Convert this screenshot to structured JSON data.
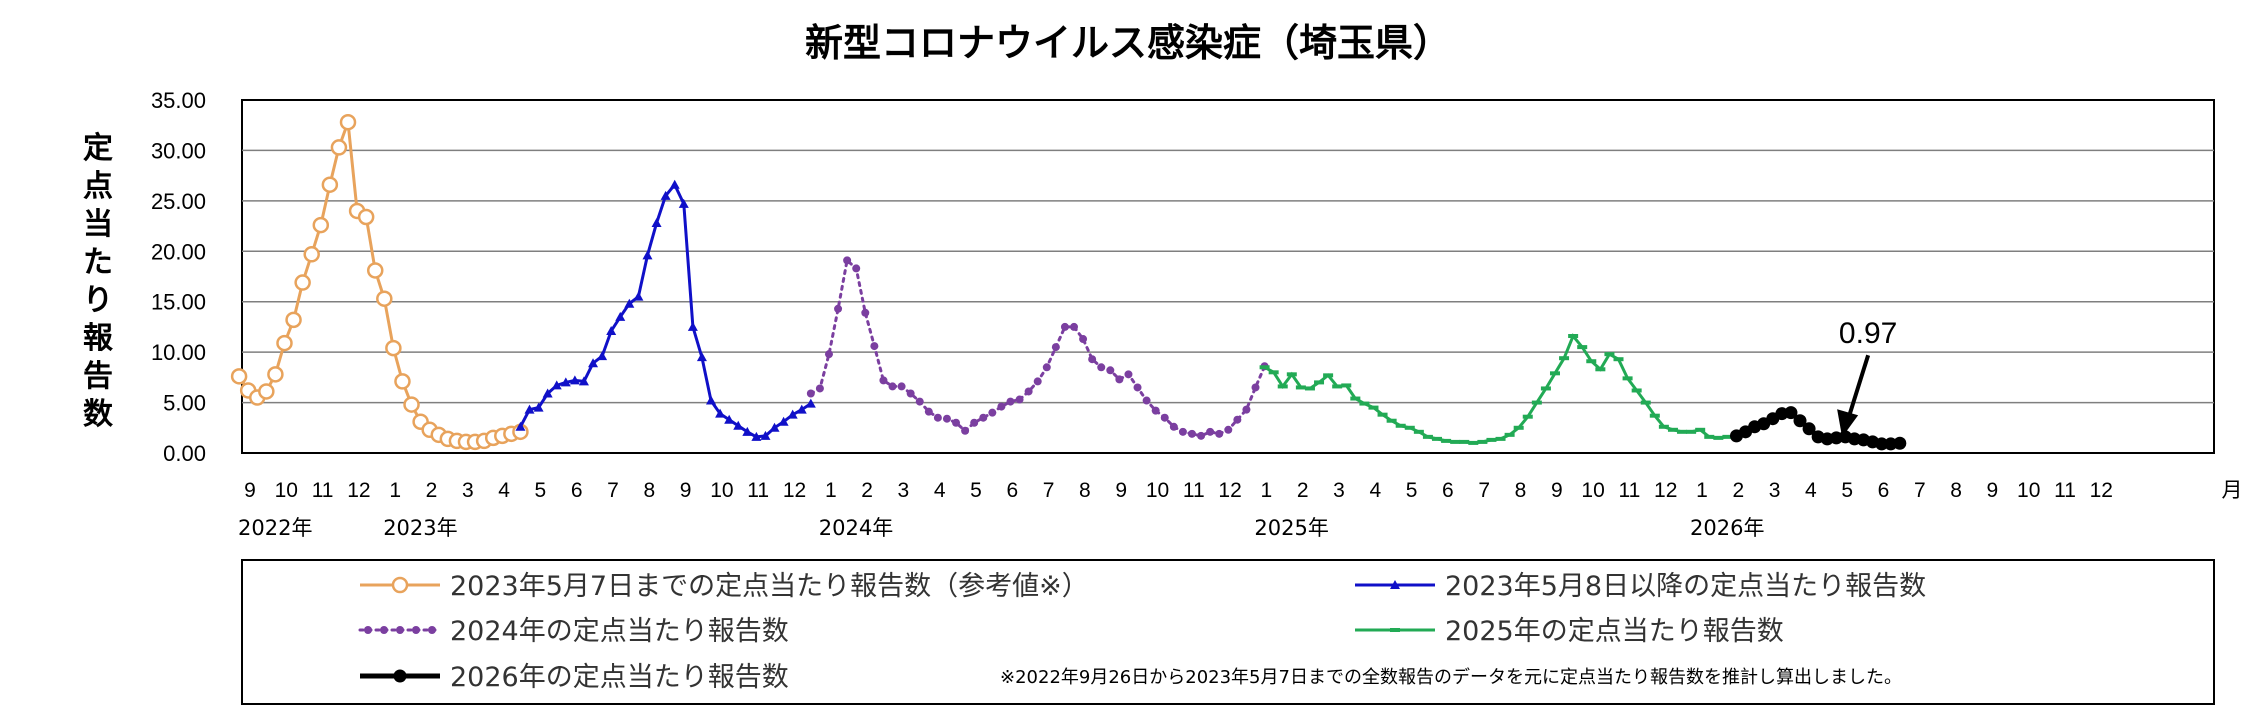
{
  "chart_data": {
    "type": "line",
    "title": "新型コロナウイルス感染症（埼玉県）",
    "ylabel": "定点当たり報告数",
    "ylim": [
      0,
      35
    ],
    "yticks": [
      "0.00",
      "5.00",
      "10.00",
      "15.00",
      "20.00",
      "25.00",
      "30.00",
      "35.00"
    ],
    "grid": true,
    "month_labels": [
      "9",
      "10",
      "11",
      "12",
      "1",
      "2",
      "3",
      "4",
      "5",
      "6",
      "7",
      "8",
      "9",
      "10",
      "11",
      "12",
      "1",
      "2",
      "3",
      "4",
      "5",
      "6",
      "7",
      "8",
      "9",
      "10",
      "11",
      "12",
      "1",
      "2",
      "3",
      "4",
      "5",
      "6",
      "7",
      "8",
      "9",
      "10",
      "11",
      "12",
      "1",
      "2",
      "3",
      "4",
      "5",
      "6",
      "7",
      "8",
      "9",
      "10",
      "11",
      "12"
    ],
    "month_unit": "月",
    "year_labels": [
      {
        "month_index": 0,
        "text": "2022年"
      },
      {
        "month_index": 4,
        "text": "2023年"
      },
      {
        "month_index": 16,
        "text": "2024年"
      },
      {
        "month_index": 28,
        "text": "2025年"
      },
      {
        "month_index": 40,
        "text": "2026年"
      }
    ],
    "annotation": {
      "text": "0.97",
      "x": 43.75,
      "y": 0.97
    },
    "legend_position": "bottom",
    "note": "※2022年9月26日から2023年5月7日までの全数報告のデータを元に定点当たり報告数を推計し算出しました。",
    "series": [
      {
        "name": "2023年5月7日までの定点当たり報告数（参考値※）",
        "color": "#e8a35c",
        "marker": "circle-open",
        "points": [
          [
            -0.3,
            7.6
          ],
          [
            -0.05,
            6.2
          ],
          [
            0.2,
            5.5
          ],
          [
            0.45,
            6.1
          ],
          [
            0.7,
            7.8
          ],
          [
            0.95,
            10.9
          ],
          [
            1.2,
            13.2
          ],
          [
            1.45,
            16.9
          ],
          [
            1.7,
            19.7
          ],
          [
            1.95,
            22.6
          ],
          [
            2.2,
            26.6
          ],
          [
            2.45,
            30.3
          ],
          [
            2.7,
            32.8
          ],
          [
            2.95,
            24.0
          ],
          [
            3.2,
            23.4
          ],
          [
            3.45,
            18.1
          ],
          [
            3.7,
            15.3
          ],
          [
            3.95,
            10.4
          ],
          [
            4.2,
            7.1
          ],
          [
            4.45,
            4.8
          ],
          [
            4.7,
            3.1
          ],
          [
            4.95,
            2.3
          ],
          [
            5.2,
            1.8
          ],
          [
            5.45,
            1.4
          ],
          [
            5.7,
            1.2
          ],
          [
            5.95,
            1.1
          ],
          [
            6.2,
            1.1
          ],
          [
            6.45,
            1.2
          ],
          [
            6.7,
            1.5
          ],
          [
            6.95,
            1.7
          ],
          [
            7.2,
            1.9
          ],
          [
            7.45,
            2.1
          ]
        ]
      },
      {
        "name": "2023年5月8日以降の定点当たり報告数",
        "color": "#1010c8",
        "marker": "triangle",
        "points": [
          [
            7.45,
            2.6
          ],
          [
            7.7,
            4.3
          ],
          [
            7.95,
            4.5
          ],
          [
            8.2,
            5.9
          ],
          [
            8.45,
            6.7
          ],
          [
            8.7,
            7.0
          ],
          [
            8.95,
            7.2
          ],
          [
            9.2,
            7.1
          ],
          [
            9.45,
            8.9
          ],
          [
            9.7,
            9.6
          ],
          [
            9.95,
            12.1
          ],
          [
            10.2,
            13.5
          ],
          [
            10.45,
            14.8
          ],
          [
            10.7,
            15.5
          ],
          [
            10.95,
            19.6
          ],
          [
            11.2,
            22.8
          ],
          [
            11.45,
            25.5
          ],
          [
            11.7,
            26.6
          ],
          [
            11.95,
            24.7
          ],
          [
            12.2,
            12.5
          ],
          [
            12.45,
            9.5
          ],
          [
            12.7,
            5.2
          ],
          [
            12.95,
            3.9
          ],
          [
            13.2,
            3.3
          ],
          [
            13.45,
            2.7
          ],
          [
            13.7,
            2.1
          ],
          [
            13.95,
            1.6
          ],
          [
            14.2,
            1.7
          ],
          [
            14.45,
            2.5
          ],
          [
            14.7,
            3.1
          ],
          [
            14.95,
            3.8
          ],
          [
            15.2,
            4.3
          ],
          [
            15.45,
            4.9
          ]
        ]
      },
      {
        "name": "2024年の定点当たり報告数",
        "color": "#7b3fa0",
        "marker": "dot",
        "points": [
          [
            15.45,
            5.9
          ],
          [
            15.7,
            6.4
          ],
          [
            15.95,
            9.8
          ],
          [
            16.2,
            14.3
          ],
          [
            16.45,
            19.1
          ],
          [
            16.7,
            18.3
          ],
          [
            16.95,
            13.9
          ],
          [
            17.2,
            10.6
          ],
          [
            17.45,
            7.2
          ],
          [
            17.7,
            6.6
          ],
          [
            17.95,
            6.6
          ],
          [
            18.2,
            5.9
          ],
          [
            18.45,
            5.1
          ],
          [
            18.7,
            4.1
          ],
          [
            18.95,
            3.5
          ],
          [
            19.2,
            3.4
          ],
          [
            19.45,
            3.0
          ],
          [
            19.7,
            2.2
          ],
          [
            19.95,
            3.0
          ],
          [
            20.2,
            3.5
          ],
          [
            20.45,
            4.0
          ],
          [
            20.7,
            4.6
          ],
          [
            20.95,
            5.1
          ],
          [
            21.2,
            5.3
          ],
          [
            21.45,
            6.1
          ],
          [
            21.7,
            7.1
          ],
          [
            21.95,
            8.5
          ],
          [
            22.2,
            10.5
          ],
          [
            22.45,
            12.5
          ],
          [
            22.7,
            12.5
          ],
          [
            22.95,
            11.3
          ],
          [
            23.2,
            9.3
          ],
          [
            23.45,
            8.5
          ],
          [
            23.7,
            8.2
          ],
          [
            23.95,
            7.3
          ],
          [
            24.2,
            7.8
          ],
          [
            24.45,
            6.5
          ],
          [
            24.7,
            5.2
          ],
          [
            24.95,
            4.2
          ],
          [
            25.2,
            3.5
          ],
          [
            25.45,
            2.6
          ],
          [
            25.7,
            2.1
          ],
          [
            25.95,
            1.9
          ],
          [
            26.2,
            1.7
          ],
          [
            26.45,
            2.1
          ],
          [
            26.7,
            1.9
          ],
          [
            26.95,
            2.3
          ],
          [
            27.2,
            3.3
          ],
          [
            27.45,
            4.3
          ],
          [
            27.7,
            6.5
          ],
          [
            27.95,
            8.6
          ]
        ]
      },
      {
        "name": "2025年の定点当たり報告数",
        "color": "#22aa55",
        "marker": "dash",
        "points": [
          [
            27.95,
            8.5
          ],
          [
            28.2,
            8.0
          ],
          [
            28.45,
            6.6
          ],
          [
            28.7,
            7.8
          ],
          [
            28.95,
            6.5
          ],
          [
            29.2,
            6.4
          ],
          [
            29.45,
            7.0
          ],
          [
            29.7,
            7.7
          ],
          [
            29.95,
            6.6
          ],
          [
            30.2,
            6.7
          ],
          [
            30.45,
            5.4
          ],
          [
            30.7,
            4.9
          ],
          [
            30.95,
            4.5
          ],
          [
            31.2,
            3.8
          ],
          [
            31.45,
            3.2
          ],
          [
            31.7,
            2.7
          ],
          [
            31.95,
            2.5
          ],
          [
            32.2,
            2.1
          ],
          [
            32.45,
            1.6
          ],
          [
            32.7,
            1.4
          ],
          [
            32.95,
            1.2
          ],
          [
            33.2,
            1.1
          ],
          [
            33.45,
            1.1
          ],
          [
            33.7,
            1.0
          ],
          [
            33.95,
            1.1
          ],
          [
            34.2,
            1.3
          ],
          [
            34.45,
            1.4
          ],
          [
            34.7,
            1.8
          ],
          [
            34.95,
            2.5
          ],
          [
            35.2,
            3.6
          ],
          [
            35.45,
            5.0
          ],
          [
            35.7,
            6.4
          ],
          [
            35.95,
            7.9
          ],
          [
            36.2,
            9.4
          ],
          [
            36.45,
            11.6
          ],
          [
            36.7,
            10.5
          ],
          [
            36.95,
            9.1
          ],
          [
            37.2,
            8.3
          ],
          [
            37.45,
            9.8
          ],
          [
            37.7,
            9.3
          ],
          [
            37.95,
            7.4
          ],
          [
            38.2,
            6.2
          ],
          [
            38.45,
            5.0
          ],
          [
            38.7,
            3.7
          ],
          [
            38.95,
            2.6
          ],
          [
            39.2,
            2.3
          ],
          [
            39.45,
            2.1
          ],
          [
            39.7,
            2.1
          ],
          [
            39.95,
            2.3
          ],
          [
            40.2,
            1.6
          ],
          [
            40.45,
            1.5
          ],
          [
            40.7,
            1.6
          ]
        ]
      },
      {
        "name": "2026年の定点当たり報告数",
        "color": "#000000",
        "marker": "dot-large",
        "points": [
          [
            40.95,
            1.7
          ],
          [
            41.2,
            2.1
          ],
          [
            41.45,
            2.6
          ],
          [
            41.7,
            2.9
          ],
          [
            41.95,
            3.4
          ],
          [
            42.2,
            3.9
          ],
          [
            42.45,
            4.0
          ],
          [
            42.7,
            3.2
          ],
          [
            42.95,
            2.4
          ],
          [
            43.2,
            1.6
          ],
          [
            43.45,
            1.4
          ],
          [
            43.7,
            1.5
          ],
          [
            43.95,
            1.6
          ],
          [
            44.2,
            1.4
          ],
          [
            44.45,
            1.3
          ],
          [
            44.7,
            1.1
          ],
          [
            44.95,
            0.9
          ],
          [
            45.2,
            0.9
          ],
          [
            45.45,
            0.97
          ]
        ]
      }
    ]
  }
}
